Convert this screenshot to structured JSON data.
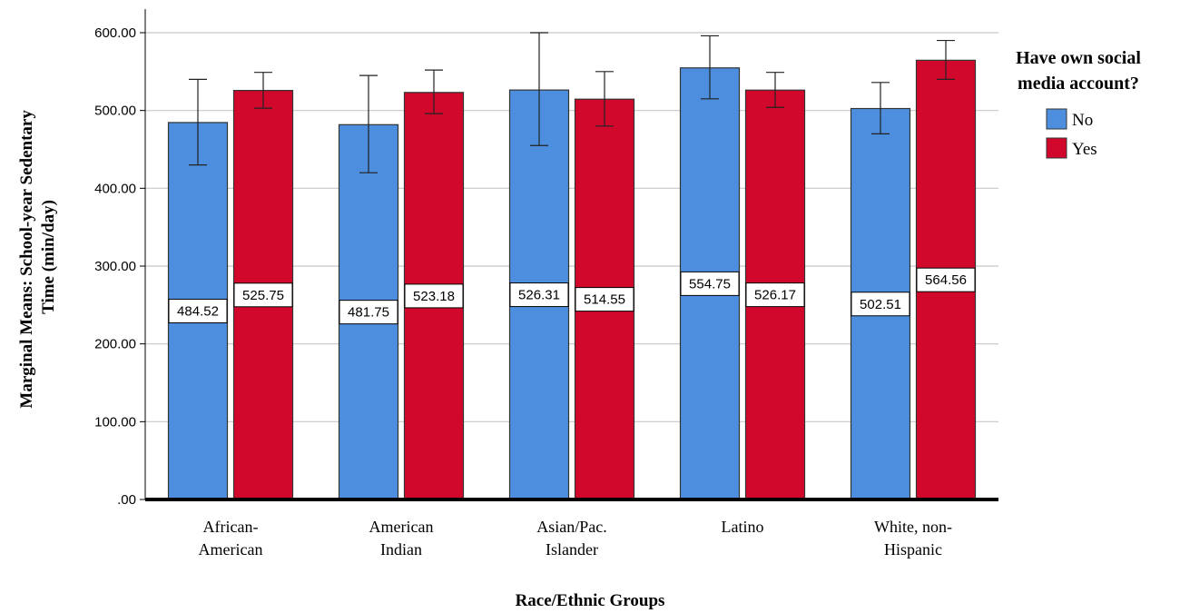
{
  "chart_data": {
    "type": "bar",
    "categories": [
      [
        "African-",
        "American"
      ],
      [
        "American",
        "Indian"
      ],
      [
        "Asian/Pac.",
        "Islander"
      ],
      [
        "Latino"
      ],
      [
        "White, non-",
        "Hispanic"
      ]
    ],
    "series": [
      {
        "name": "No",
        "color": "#4d8fde",
        "values": [
          484.52,
          481.75,
          526.31,
          554.75,
          502.51
        ],
        "value_labels": [
          "484.52",
          "481.75",
          "526.31",
          "554.75",
          "502.51"
        ],
        "error_low": [
          430,
          420,
          455,
          515,
          470
        ],
        "error_high": [
          540,
          545,
          600,
          596,
          536
        ]
      },
      {
        "name": "Yes",
        "color": "#d1082c",
        "values": [
          525.75,
          523.18,
          514.55,
          526.17,
          564.56
        ],
        "value_labels": [
          "525.75",
          "523.18",
          "514.55",
          "526.17",
          "564.56"
        ],
        "error_low": [
          503,
          496,
          480,
          504,
          540
        ],
        "error_high": [
          549,
          552,
          550,
          549,
          590
        ]
      }
    ],
    "ylabel_lines": [
      "Marginal Means: School-year Sedentary",
      "Time (min/day)"
    ],
    "xlabel": "Race/Ethnic Groups",
    "legend_title_lines": [
      "Have own social",
      "media account?"
    ],
    "legend_position": "right",
    "ylim": [
      0,
      620
    ],
    "yticks": [
      0,
      100,
      200,
      300,
      400,
      500,
      600
    ],
    "ytick_labels": [
      ".00",
      "100.00",
      "200.00",
      "300.00",
      "400.00",
      "500.00",
      "600.00"
    ],
    "grid": true
  }
}
